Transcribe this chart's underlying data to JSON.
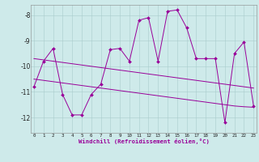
{
  "xlabel": "Windchill (Refroidissement éolien,°C)",
  "x": [
    0,
    1,
    2,
    3,
    4,
    5,
    6,
    7,
    8,
    9,
    10,
    11,
    12,
    13,
    14,
    15,
    16,
    17,
    18,
    19,
    20,
    21,
    22,
    23
  ],
  "y_main": [
    -10.8,
    -9.8,
    -9.3,
    -11.1,
    -11.9,
    -11.9,
    -11.1,
    -10.7,
    -9.35,
    -9.3,
    -9.8,
    -8.2,
    -8.1,
    -9.8,
    -7.85,
    -7.8,
    -8.5,
    -9.7,
    -9.7,
    -9.7,
    -12.2,
    -9.5,
    -9.05,
    -11.55
  ],
  "y_trend1": [
    -9.7,
    -9.75,
    -9.8,
    -9.85,
    -9.9,
    -9.95,
    -10.0,
    -10.05,
    -10.1,
    -10.15,
    -10.2,
    -10.25,
    -10.3,
    -10.35,
    -10.4,
    -10.45,
    -10.5,
    -10.55,
    -10.6,
    -10.65,
    -10.7,
    -10.75,
    -10.8,
    -10.85
  ],
  "y_trend2": [
    -10.5,
    -10.55,
    -10.6,
    -10.65,
    -10.7,
    -10.75,
    -10.8,
    -10.85,
    -10.9,
    -10.95,
    -11.0,
    -11.05,
    -11.1,
    -11.15,
    -11.2,
    -11.25,
    -11.3,
    -11.35,
    -11.4,
    -11.45,
    -11.5,
    -11.55,
    -11.58,
    -11.6
  ],
  "line_color": "#990099",
  "bg_color": "#ceeaea",
  "grid_color": "#aacccc",
  "ylim": [
    -12.6,
    -7.6
  ],
  "yticks": [
    -12,
    -11,
    -10,
    -9,
    -8
  ],
  "xlim": [
    -0.3,
    23.3
  ]
}
